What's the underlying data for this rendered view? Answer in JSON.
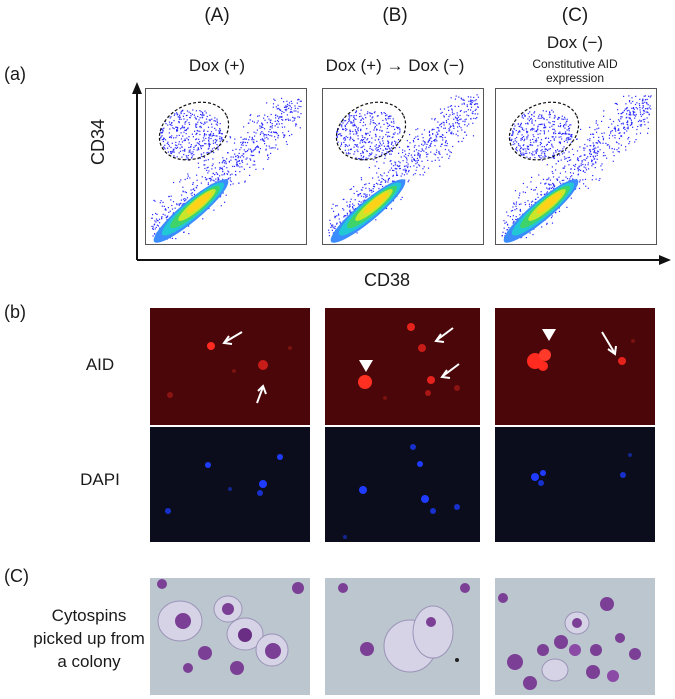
{
  "figure": {
    "columns": [
      {
        "letter": "(A)",
        "condition": "Dox (+)",
        "sub": ""
      },
      {
        "letter": "(B)",
        "condition": "Dox (+) → Dox (−)",
        "sub": ""
      },
      {
        "letter": "(C)",
        "condition": "Dox (−)",
        "sub": "Constitutive AID expression"
      }
    ],
    "panel_a": {
      "label": "(a)",
      "y_axis": "CD34",
      "x_axis": "CD38"
    },
    "panel_b": {
      "label": "(b)",
      "row1": "AID",
      "row2": "DAPI"
    },
    "panel_c": {
      "label": "(C)",
      "row_label": "Cytospins picked up from a colony"
    }
  },
  "colors": {
    "aid_bg": "#4a0608",
    "aid_cell": "#ff2a20",
    "dapi_bg": "#0c0d1c",
    "dapi_cell": "#1e3bff",
    "cyto_bg": "#bcc6cf",
    "cyto_nucleus": "#7b3f95",
    "facs_dot": "#2a2aff"
  }
}
